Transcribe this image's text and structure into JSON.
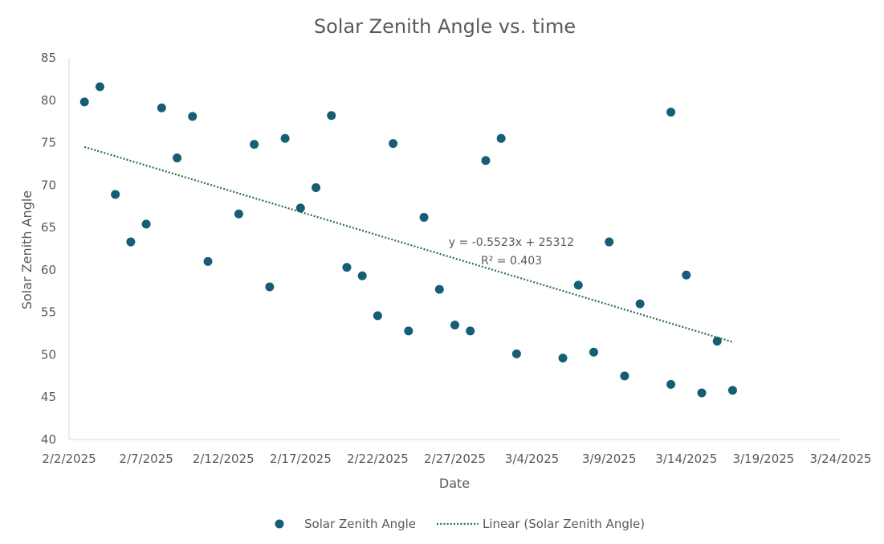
{
  "chart_data": {
    "type": "scatter",
    "title": "Solar Zenith Angle vs. time",
    "xlabel": "Date",
    "ylabel": "Solar Zenith Angle",
    "xlim": [
      "2025-02-02",
      "2025-03-24"
    ],
    "ylim": [
      40,
      85
    ],
    "y_ticks": [
      40,
      45,
      50,
      55,
      60,
      65,
      70,
      75,
      80,
      85
    ],
    "x_ticks": [
      "2025-02-02",
      "2025-02-07",
      "2025-02-12",
      "2025-02-17",
      "2025-02-22",
      "2025-02-27",
      "2025-03-04",
      "2025-03-09",
      "2025-03-14",
      "2025-03-19",
      "2025-03-24"
    ],
    "x_tick_labels": [
      "2/2/2025",
      "2/7/2025",
      "2/12/2025",
      "2/17/2025",
      "2/22/2025",
      "2/27/2025",
      "3/4/2025",
      "3/9/2025",
      "3/14/2025",
      "3/19/2025",
      "3/24/2025"
    ],
    "grid": false,
    "legend_position": "bottom",
    "series": [
      {
        "name": "Solar Zenith Angle",
        "color": "#155e75",
        "points": [
          {
            "x": "2025-02-03",
            "y": 79.8
          },
          {
            "x": "2025-02-04",
            "y": 81.6
          },
          {
            "x": "2025-02-05",
            "y": 68.9
          },
          {
            "x": "2025-02-06",
            "y": 63.3
          },
          {
            "x": "2025-02-07",
            "y": 65.4
          },
          {
            "x": "2025-02-08",
            "y": 79.1
          },
          {
            "x": "2025-02-09",
            "y": 73.2
          },
          {
            "x": "2025-02-10",
            "y": 78.1
          },
          {
            "x": "2025-02-11",
            "y": 61.0
          },
          {
            "x": "2025-02-13",
            "y": 66.6
          },
          {
            "x": "2025-02-14",
            "y": 74.8
          },
          {
            "x": "2025-02-15",
            "y": 58.0
          },
          {
            "x": "2025-02-16",
            "y": 75.5
          },
          {
            "x": "2025-02-17",
            "y": 67.3
          },
          {
            "x": "2025-02-18",
            "y": 69.7
          },
          {
            "x": "2025-02-19",
            "y": 78.2
          },
          {
            "x": "2025-02-20",
            "y": 60.3
          },
          {
            "x": "2025-02-21",
            "y": 59.3
          },
          {
            "x": "2025-02-22",
            "y": 54.6
          },
          {
            "x": "2025-02-23",
            "y": 74.9
          },
          {
            "x": "2025-02-24",
            "y": 52.8
          },
          {
            "x": "2025-02-25",
            "y": 66.2
          },
          {
            "x": "2025-02-26",
            "y": 57.7
          },
          {
            "x": "2025-02-27",
            "y": 53.5
          },
          {
            "x": "2025-02-28",
            "y": 52.8
          },
          {
            "x": "2025-03-01",
            "y": 72.9
          },
          {
            "x": "2025-03-02",
            "y": 75.5
          },
          {
            "x": "2025-03-03",
            "y": 50.1
          },
          {
            "x": "2025-03-06",
            "y": 49.6
          },
          {
            "x": "2025-03-07",
            "y": 58.2
          },
          {
            "x": "2025-03-08",
            "y": 50.3
          },
          {
            "x": "2025-03-09",
            "y": 63.3
          },
          {
            "x": "2025-03-10",
            "y": 47.5
          },
          {
            "x": "2025-03-11",
            "y": 56.0
          },
          {
            "x": "2025-03-13",
            "y": 46.5
          },
          {
            "x": "2025-03-13",
            "y": 78.6
          },
          {
            "x": "2025-03-14",
            "y": 59.4
          },
          {
            "x": "2025-03-15",
            "y": 45.5
          },
          {
            "x": "2025-03-16",
            "y": 51.6
          },
          {
            "x": "2025-03-17",
            "y": 45.8
          }
        ]
      }
    ],
    "trendline": {
      "name": "Linear (Solar Zenith Angle)",
      "type": "linear",
      "color": "#2e6b4f",
      "style": "dotted",
      "x_range": [
        "2025-02-03",
        "2025-03-17"
      ],
      "y_range": [
        74.5,
        51.5
      ],
      "equation": "y = -0.5523x + 25312",
      "r2_label": "R² = 0.403"
    }
  },
  "legend": {
    "series_label": "Solar Zenith Angle",
    "trend_label": "Linear (Solar Zenith Angle)"
  }
}
